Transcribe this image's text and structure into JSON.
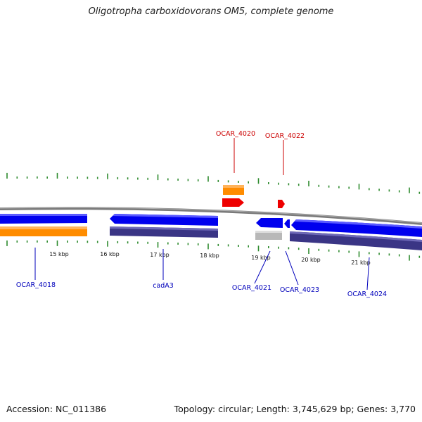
{
  "title": "Oligotropha carboxidovorans OM5, complete genome",
  "footer": {
    "accession": "Accession: NC_011386",
    "summary": "Topology: circular; Length: 3,745,629 bp; Genes: 3,770"
  },
  "colors": {
    "backbone": "#7a7a7a",
    "cds": "#0000ee",
    "cds_annotated": "#3a3585",
    "orange_feature": "#ff8c00",
    "red_feature": "#ee0000",
    "grey_feature": "#b8b8b8",
    "tick": "#2e8b2e",
    "label_top": "#cc0000",
    "label_bottom": "#0000bb"
  },
  "scale_labels": [
    "15 kbp",
    "16 kbp",
    "17 kbp",
    "18 kbp",
    "19 kbp",
    "20 kbp",
    "21 kbp"
  ],
  "gene_labels_top": [
    "OCAR_4020",
    "OCAR_4022"
  ],
  "gene_labels_bottom": [
    "OCAR_4018",
    "cadA3",
    "OCAR_4021",
    "OCAR_4023",
    "OCAR_4024"
  ]
}
